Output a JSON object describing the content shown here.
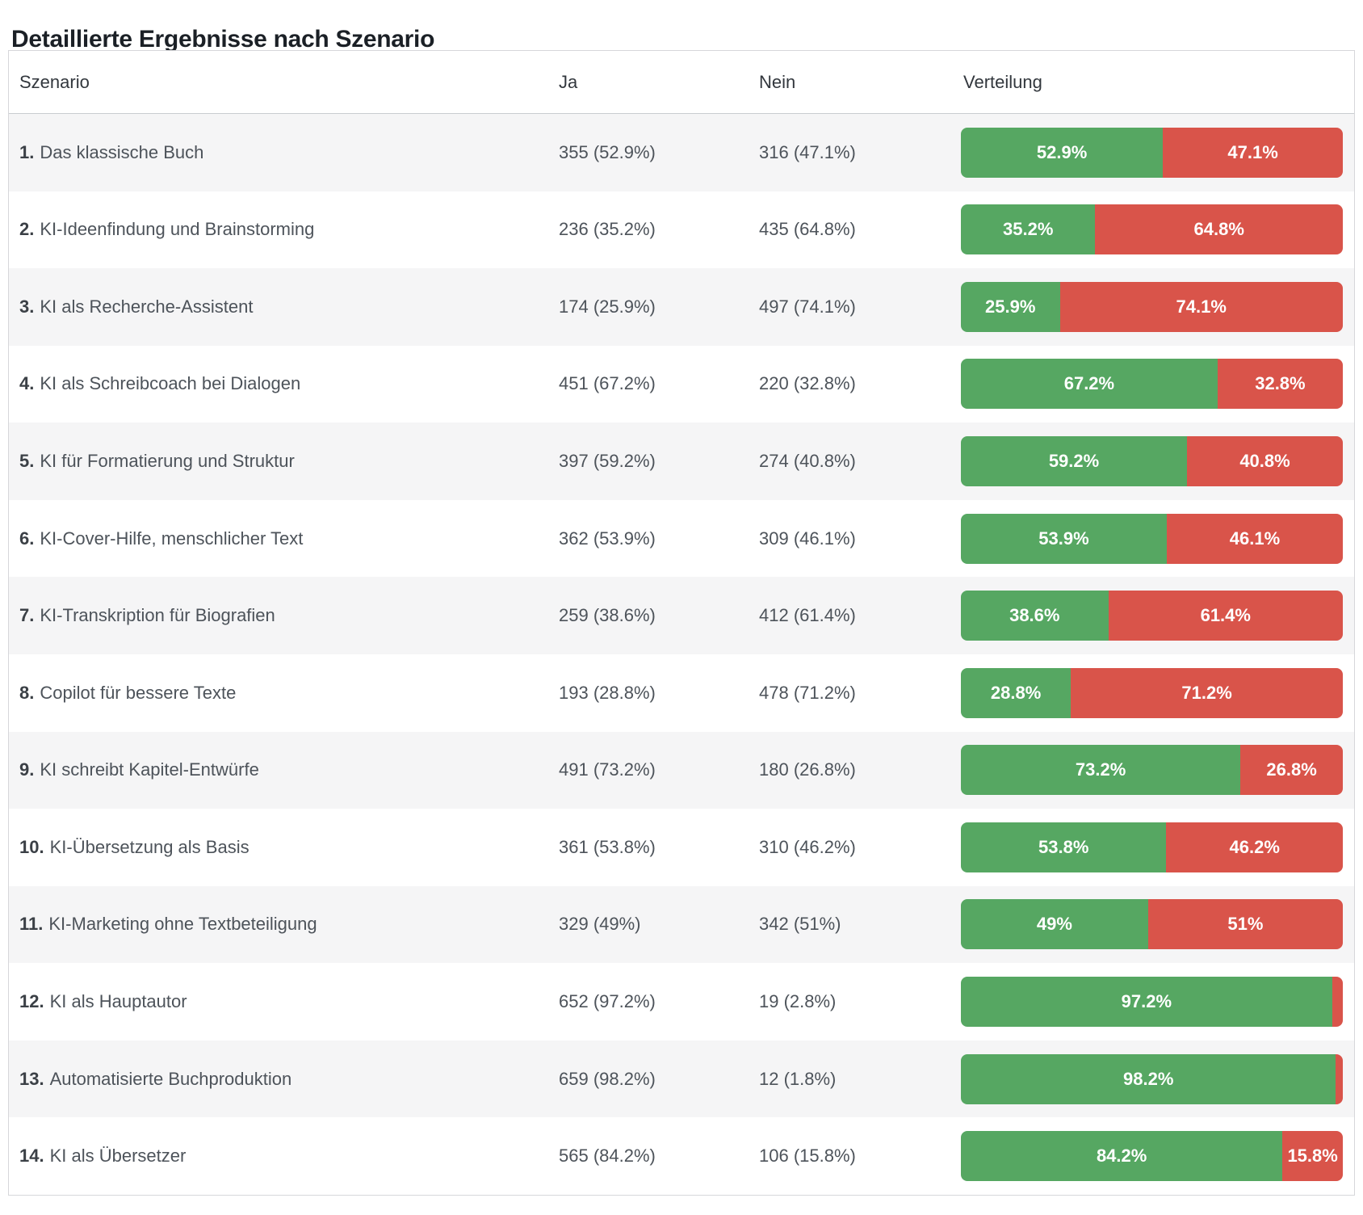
{
  "title": "Detaillierte Ergebnisse nach Szenario",
  "colors": {
    "green": "#56a762",
    "red": "#d9544a",
    "row_stripe": "#f5f5f6"
  },
  "table": {
    "columns": [
      "Szenario",
      "Ja",
      "Nein",
      "Verteilung"
    ],
    "rows": [
      {
        "num": "1.",
        "name": "Das klassische Buch",
        "ja": "355 (52.9%)",
        "nein": "316 (47.1%)",
        "green_pct": 52.9,
        "green_label": "52.9%",
        "red_label": "47.1%"
      },
      {
        "num": "2.",
        "name": "KI-Ideenfindung und Brainstorming",
        "ja": "236 (35.2%)",
        "nein": "435 (64.8%)",
        "green_pct": 35.2,
        "green_label": "35.2%",
        "red_label": "64.8%"
      },
      {
        "num": "3.",
        "name": "KI als Recherche-Assistent",
        "ja": "174 (25.9%)",
        "nein": "497 (74.1%)",
        "green_pct": 25.9,
        "green_label": "25.9%",
        "red_label": "74.1%"
      },
      {
        "num": "4.",
        "name": "KI als Schreibcoach bei Dialogen",
        "ja": "451 (67.2%)",
        "nein": "220 (32.8%)",
        "green_pct": 67.2,
        "green_label": "67.2%",
        "red_label": "32.8%"
      },
      {
        "num": "5.",
        "name": "KI für Formatierung und Struktur",
        "ja": "397 (59.2%)",
        "nein": "274 (40.8%)",
        "green_pct": 59.2,
        "green_label": "59.2%",
        "red_label": "40.8%"
      },
      {
        "num": "6.",
        "name": "KI-Cover-Hilfe, menschlicher Text",
        "ja": "362 (53.9%)",
        "nein": "309 (46.1%)",
        "green_pct": 53.9,
        "green_label": "53.9%",
        "red_label": "46.1%"
      },
      {
        "num": "7.",
        "name": "KI-Transkription für Biografien",
        "ja": "259 (38.6%)",
        "nein": "412 (61.4%)",
        "green_pct": 38.6,
        "green_label": "38.6%",
        "red_label": "61.4%"
      },
      {
        "num": "8.",
        "name": "Copilot für bessere Texte",
        "ja": "193 (28.8%)",
        "nein": "478 (71.2%)",
        "green_pct": 28.8,
        "green_label": "28.8%",
        "red_label": "71.2%"
      },
      {
        "num": "9.",
        "name": "KI schreibt Kapitel-Entwürfe",
        "ja": "491 (73.2%)",
        "nein": "180 (26.8%)",
        "green_pct": 73.2,
        "green_label": "73.2%",
        "red_label": "26.8%"
      },
      {
        "num": "10.",
        "name": "KI-Übersetzung als Basis",
        "ja": "361 (53.8%)",
        "nein": "310 (46.2%)",
        "green_pct": 53.8,
        "green_label": "53.8%",
        "red_label": "46.2%"
      },
      {
        "num": "11.",
        "name": "KI-Marketing ohne Textbeteiligung",
        "ja": "329 (49%)",
        "nein": "342 (51%)",
        "green_pct": 49.0,
        "green_label": "49%",
        "red_label": "51%"
      },
      {
        "num": "12.",
        "name": "KI als Hauptautor",
        "ja": "652 (97.2%)",
        "nein": "19 (2.8%)",
        "green_pct": 97.2,
        "green_label": "97.2%",
        "red_label": ""
      },
      {
        "num": "13.",
        "name": "Automatisierte Buchproduktion",
        "ja": "659 (98.2%)",
        "nein": "12 (1.8%)",
        "green_pct": 98.2,
        "green_label": "98.2%",
        "red_label": ""
      },
      {
        "num": "14.",
        "name": "KI als Übersetzer",
        "ja": "565 (84.2%)",
        "nein": "106 (15.8%)",
        "green_pct": 84.2,
        "green_label": "84.2%",
        "red_label": "15.8%"
      }
    ]
  },
  "chart_data": {
    "type": "table",
    "title": "Detaillierte Ergebnisse nach Szenario",
    "columns": [
      "Szenario",
      "Ja",
      "Nein",
      "Verteilung"
    ],
    "legend": {
      "green": "Ja",
      "red": "Nein"
    },
    "rows": [
      {
        "scenario": "Das klassische Buch",
        "ja_count": 355,
        "ja_pct": 52.9,
        "nein_count": 316,
        "nein_pct": 47.1
      },
      {
        "scenario": "KI-Ideenfindung und Brainstorming",
        "ja_count": 236,
        "ja_pct": 35.2,
        "nein_count": 435,
        "nein_pct": 64.8
      },
      {
        "scenario": "KI als Recherche-Assistent",
        "ja_count": 174,
        "ja_pct": 25.9,
        "nein_count": 497,
        "nein_pct": 74.1
      },
      {
        "scenario": "KI als Schreibcoach bei Dialogen",
        "ja_count": 451,
        "ja_pct": 67.2,
        "nein_count": 220,
        "nein_pct": 32.8
      },
      {
        "scenario": "KI für Formatierung und Struktur",
        "ja_count": 397,
        "ja_pct": 59.2,
        "nein_count": 274,
        "nein_pct": 40.8
      },
      {
        "scenario": "KI-Cover-Hilfe, menschlicher Text",
        "ja_count": 362,
        "ja_pct": 53.9,
        "nein_count": 309,
        "nein_pct": 46.1
      },
      {
        "scenario": "KI-Transkription für Biografien",
        "ja_count": 259,
        "ja_pct": 38.6,
        "nein_count": 412,
        "nein_pct": 61.4
      },
      {
        "scenario": "Copilot für bessere Texte",
        "ja_count": 193,
        "ja_pct": 28.8,
        "nein_count": 478,
        "nein_pct": 71.2
      },
      {
        "scenario": "KI schreibt Kapitel-Entwürfe",
        "ja_count": 491,
        "ja_pct": 73.2,
        "nein_count": 180,
        "nein_pct": 26.8
      },
      {
        "scenario": "KI-Übersetzung als Basis",
        "ja_count": 361,
        "ja_pct": 53.8,
        "nein_count": 310,
        "nein_pct": 46.2
      },
      {
        "scenario": "KI-Marketing ohne Textbeteiligung",
        "ja_count": 329,
        "ja_pct": 49.0,
        "nein_count": 342,
        "nein_pct": 51.0
      },
      {
        "scenario": "KI als Hauptautor",
        "ja_count": 652,
        "ja_pct": 97.2,
        "nein_count": 19,
        "nein_pct": 2.8
      },
      {
        "scenario": "Automatisierte Buchproduktion",
        "ja_count": 659,
        "ja_pct": 98.2,
        "nein_count": 12,
        "nein_pct": 1.8
      },
      {
        "scenario": "KI als Übersetzer",
        "ja_count": 565,
        "ja_pct": 84.2,
        "nein_count": 106,
        "nein_pct": 15.8
      }
    ]
  }
}
